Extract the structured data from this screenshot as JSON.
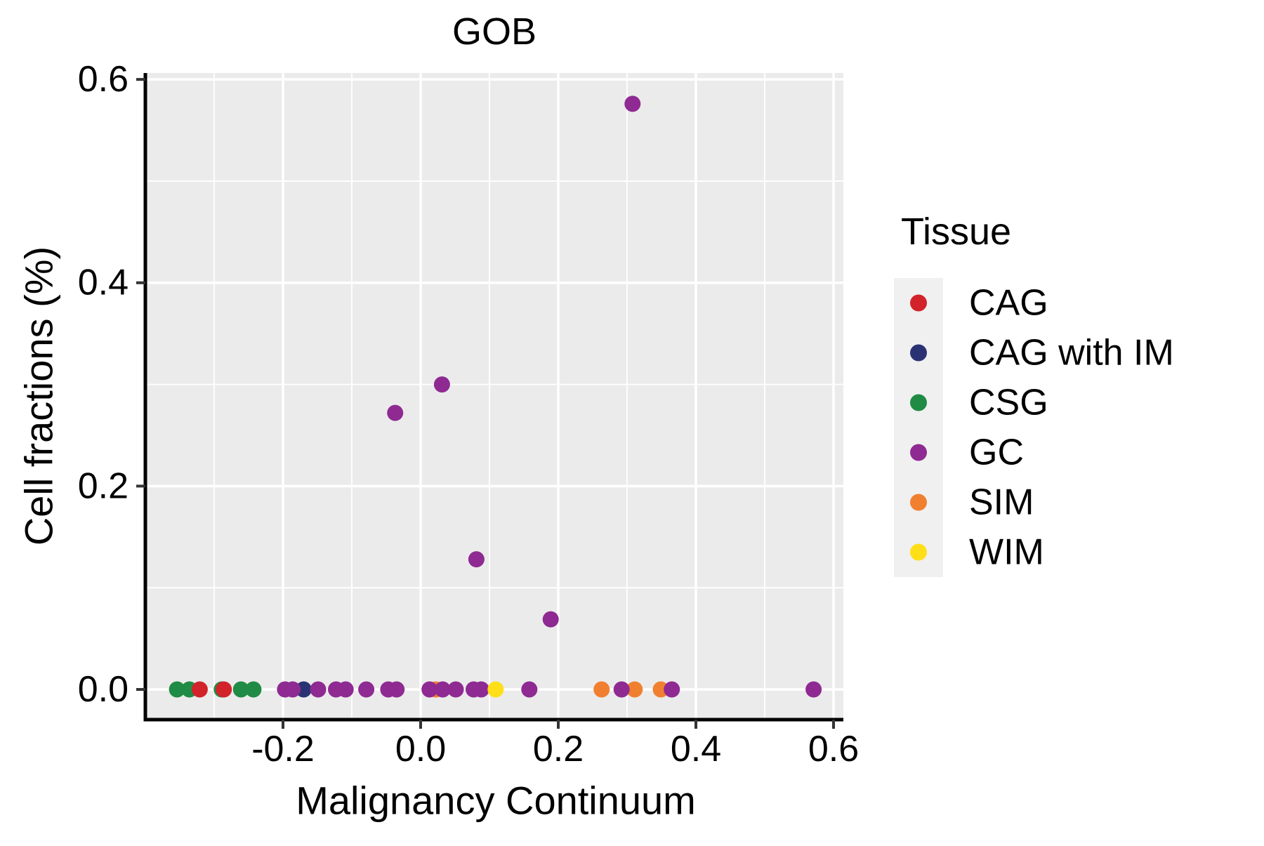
{
  "figure": {
    "title": "GOB",
    "xlabel": "Malignancy Continuum",
    "ylabel": "Cell fractions (%)"
  },
  "legend": {
    "title": "Tissue",
    "entries": [
      {
        "label": "CAG",
        "color": "#d2232a"
      },
      {
        "label": "CAG with IM",
        "color": "#2b3274"
      },
      {
        "label": "CSG",
        "color": "#1f8b44"
      },
      {
        "label": "GC",
        "color": "#8e2a92"
      },
      {
        "label": "SIM",
        "color": "#f08030"
      },
      {
        "label": "WIM",
        "color": "#ffdf17"
      }
    ]
  },
  "chart_data": {
    "type": "scatter",
    "title": "GOB",
    "xlabel": "Malignancy Continuum",
    "ylabel": "Cell fractions (%)",
    "xlim": [
      -0.4,
      0.6143
    ],
    "ylim": [
      -0.0297,
      0.6063
    ],
    "x_ticks": [
      -0.2,
      0.0,
      0.2,
      0.4,
      0.6
    ],
    "x_tick_labels": [
      "-0.2",
      "0.0",
      "0.2",
      "0.4",
      "0.6"
    ],
    "y_ticks": [
      0.0,
      0.2,
      0.4,
      0.6
    ],
    "y_tick_labels": [
      "0.0",
      "0.2",
      "0.4",
      "0.6"
    ],
    "x_minor_gridlines": [
      -0.3,
      -0.1,
      0.1,
      0.3,
      0.5
    ],
    "y_minor_gridlines": [
      0.1,
      0.3,
      0.5
    ],
    "grid": true,
    "legend_position": "right",
    "legend_title": "Tissue",
    "panel_bg": "#ebebeb",
    "grid_color": "#ffffff",
    "legend_key_bg": "#f0f0f0",
    "series": [
      {
        "name": "CAG",
        "color": "#d2232a",
        "points": [
          [
            -0.321,
            0.0
          ],
          [
            -0.286,
            0.0
          ]
        ]
      },
      {
        "name": "CAG with IM",
        "color": "#2b3274",
        "points": [
          [
            -0.17,
            0.0
          ]
        ]
      },
      {
        "name": "CSG",
        "color": "#1f8b44",
        "points": [
          [
            -0.354,
            0.0
          ],
          [
            -0.336,
            0.0
          ],
          [
            -0.289,
            0.0
          ],
          [
            -0.261,
            0.0
          ],
          [
            -0.243,
            0.0
          ]
        ]
      },
      {
        "name": "GC",
        "color": "#8e2a92",
        "points": [
          [
            -0.197,
            0.0
          ],
          [
            -0.186,
            0.0
          ],
          [
            -0.149,
            0.0
          ],
          [
            -0.123,
            0.0
          ],
          [
            -0.109,
            0.0
          ],
          [
            -0.079,
            0.0
          ],
          [
            -0.047,
            0.0
          ],
          [
            -0.035,
            0.0
          ],
          [
            0.013,
            0.0
          ],
          [
            0.032,
            0.0
          ],
          [
            0.051,
            0.0
          ],
          [
            0.077,
            0.0
          ],
          [
            0.088,
            0.0
          ],
          [
            0.158,
            0.0
          ],
          [
            0.292,
            0.0
          ],
          [
            0.365,
            0.0
          ],
          [
            0.571,
            0.0
          ],
          [
            -0.037,
            0.272
          ],
          [
            0.031,
            0.3
          ],
          [
            0.081,
            0.128
          ],
          [
            0.189,
            0.069
          ],
          [
            0.308,
            0.576
          ]
        ]
      },
      {
        "name": "SIM",
        "color": "#f08030",
        "points": [
          [
            0.022,
            0.0
          ],
          [
            0.263,
            0.0
          ],
          [
            0.311,
            0.0
          ],
          [
            0.349,
            0.0
          ]
        ]
      },
      {
        "name": "WIM",
        "color": "#ffdf17",
        "points": [
          [
            0.109,
            0.0
          ]
        ]
      }
    ]
  }
}
